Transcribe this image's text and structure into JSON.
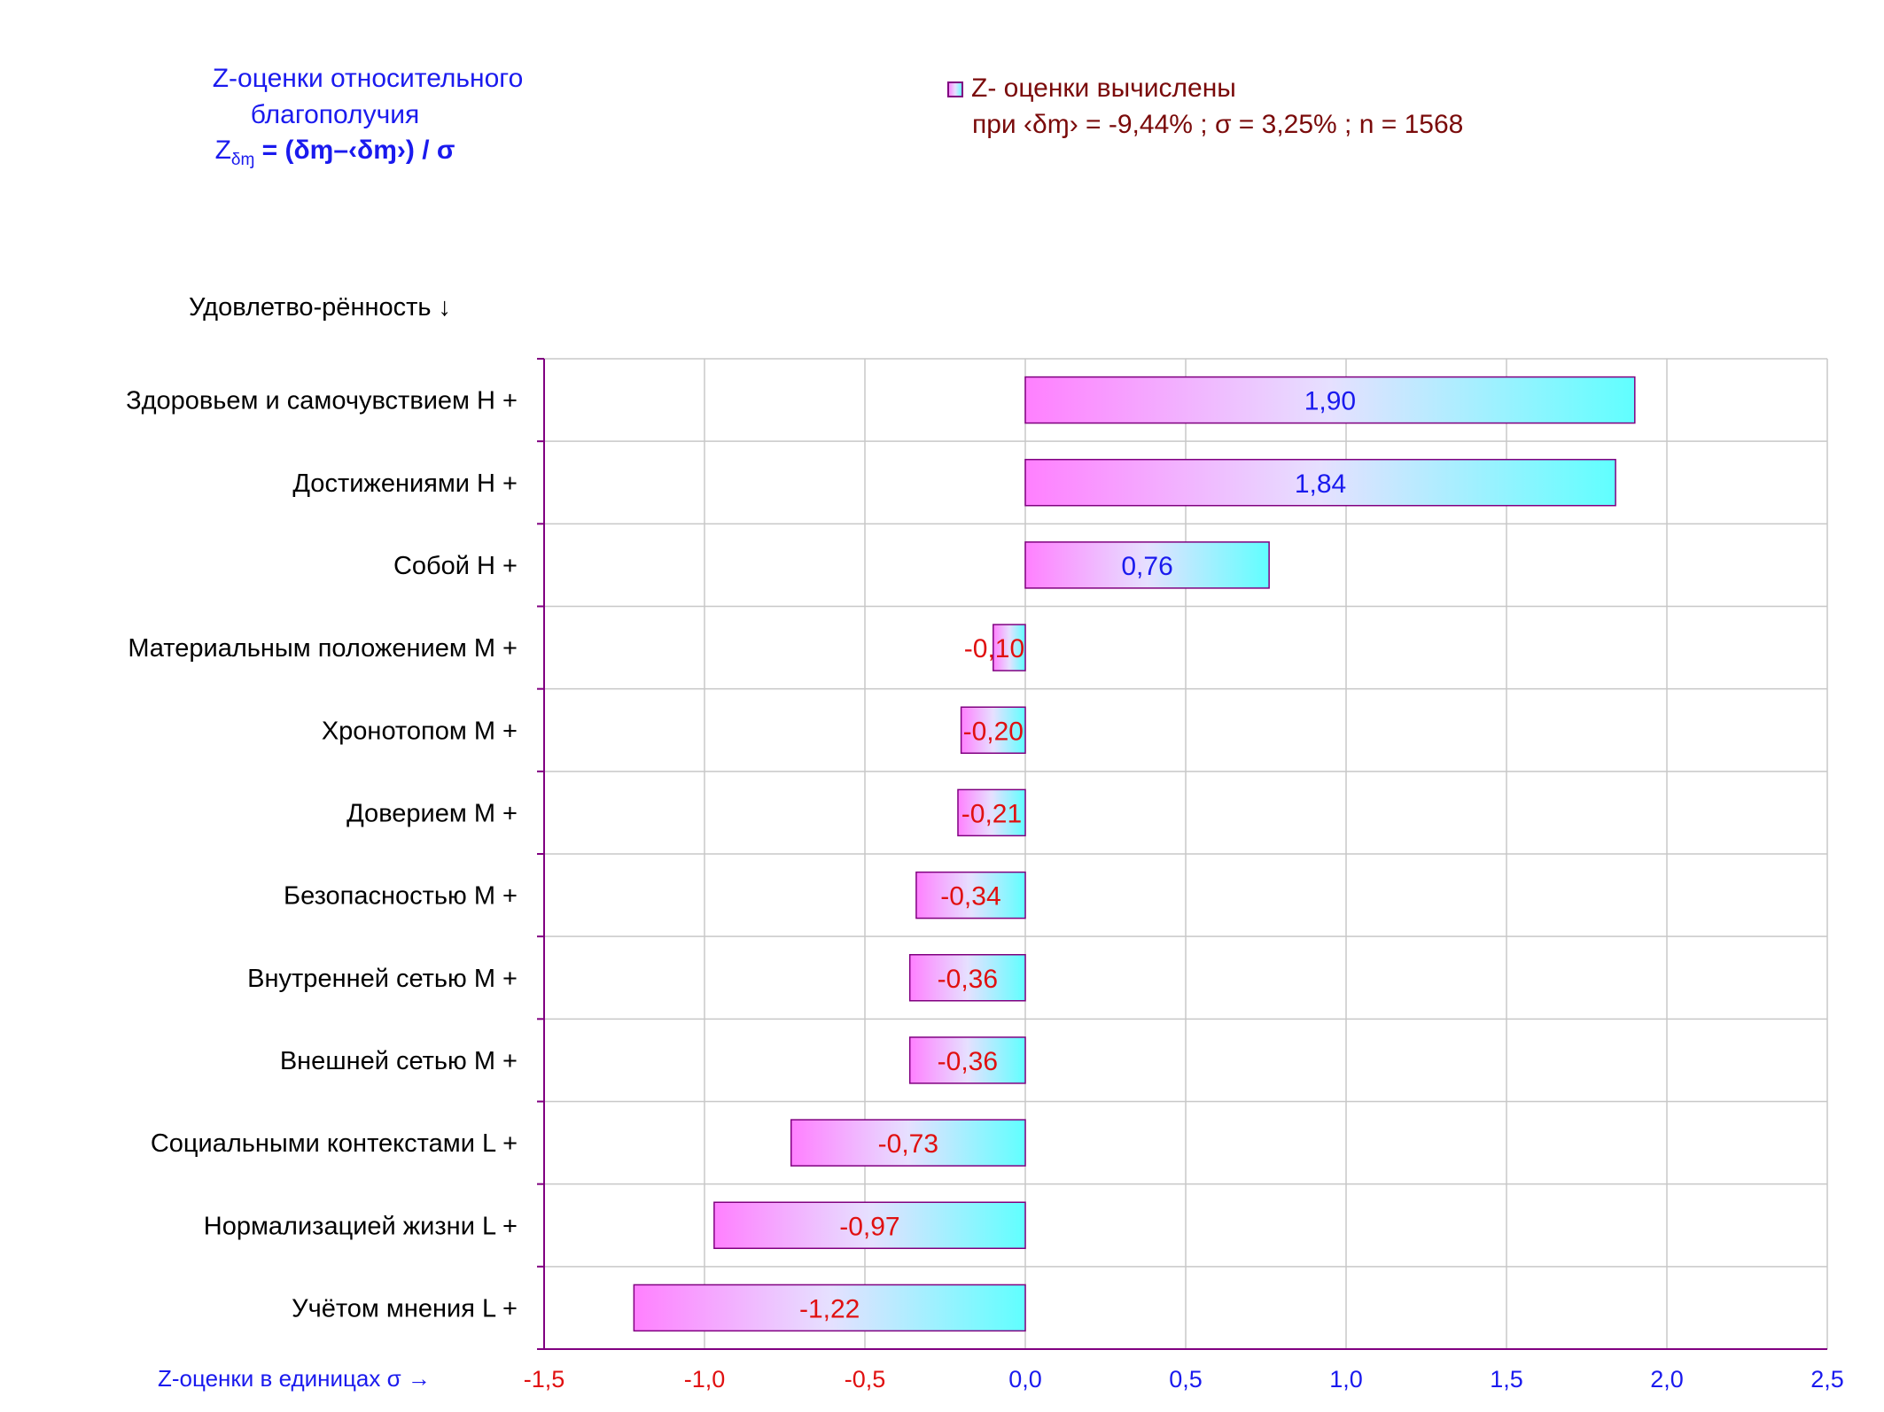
{
  "chart_data": {
    "type": "bar",
    "orientation": "horizontal",
    "title_lines": [
      "Z-оценки  относительного",
      "благополучия"
    ],
    "formula": {
      "lhs": "Z",
      "lhs_sub": "δɱ",
      "rhs": " = (δɱ–‹δɱ›)  / σ"
    },
    "legend": {
      "label": "Z- оценки вычислены",
      "detail": "при ‹δɱ› = -9,44% ; σ = 3,25% ; n = 1568",
      "placement": "top-right"
    },
    "ylabel": "Удовлетво-рённость ↓",
    "xlabel": "Z-оценки в единицах σ →",
    "xlim": [
      -1.5,
      2.5
    ],
    "xticks": [
      {
        "value": -1.5,
        "label": "-1,5"
      },
      {
        "value": -1.0,
        "label": "-1,0"
      },
      {
        "value": -0.5,
        "label": "-0,5"
      },
      {
        "value": 0.0,
        "label": "0,0"
      },
      {
        "value": 0.5,
        "label": "0,5"
      },
      {
        "value": 1.0,
        "label": "1,0"
      },
      {
        "value": 1.5,
        "label": "1,5"
      },
      {
        "value": 2.0,
        "label": "2,0"
      },
      {
        "value": 2.5,
        "label": "2,5"
      }
    ],
    "grid": true,
    "categories": [
      "Здоровьем и самочувствием  Н +",
      "Достижениями  Н +",
      "Собой  Н +",
      "Материальным положением  М +",
      "Хронотопом  М +",
      "Доверием  М +",
      "Безопасностью  М +",
      "Внутренней сетью  М +",
      "Внешней сетью  М +",
      "Социальными контекстами  L +",
      "Нормализацией жизни  L +",
      "Учётом мнения  L +"
    ],
    "values": [
      1.9,
      1.84,
      0.76,
      -0.1,
      -0.2,
      -0.21,
      -0.34,
      -0.36,
      -0.36,
      -0.73,
      -0.97,
      -1.22
    ],
    "value_labels": [
      "1,90",
      "1,84",
      "0,76",
      "-0,10",
      "-0,20",
      "-0,21",
      "-0,34",
      "-0,36",
      "-0,36",
      "-0,73",
      "-0,97",
      "-1,22"
    ],
    "colors": {
      "bar_gradient_start": "#ff80ff",
      "bar_gradient_mid": "#e6e0ff",
      "bar_gradient_end": "#60ffff",
      "positive_label": "#1a1aee",
      "negative_label": "#e01010",
      "positive_tick": "#1a1aee",
      "negative_tick": "#e01010",
      "axis_line": "#800080",
      "gridline": "#c8c8c8",
      "title": "#1a1aee",
      "legend_text": "#7a0a0a"
    }
  }
}
